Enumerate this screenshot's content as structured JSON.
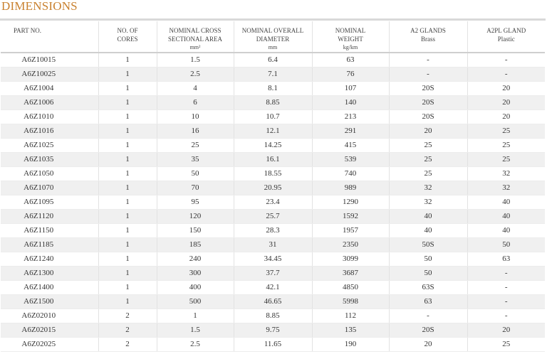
{
  "heading": "DIMENSIONS",
  "columns": [
    {
      "lines": [
        "PART NO."
      ],
      "unit": ""
    },
    {
      "lines": [
        "NO. OF",
        "CORES"
      ],
      "unit": ""
    },
    {
      "lines": [
        "NOMINAL CROSS",
        "SECTIONAL AREA"
      ],
      "unit": "mm²"
    },
    {
      "lines": [
        "NOMINAL OVERALL",
        "DIAMETER"
      ],
      "unit": "mm"
    },
    {
      "lines": [
        "NOMINAL",
        "WEIGHT"
      ],
      "unit": "kg/km"
    },
    {
      "lines": [
        "A2 GLANDS",
        "Brass"
      ],
      "unit": ""
    },
    {
      "lines": [
        "A2PL GLAND",
        "Plastic"
      ],
      "unit": ""
    }
  ],
  "rows": [
    [
      "A6Z10015",
      "1",
      "1.5",
      "6.4",
      "63",
      "-",
      "-"
    ],
    [
      "A6Z10025",
      "1",
      "2.5",
      "7.1",
      "76",
      "-",
      "-"
    ],
    [
      "A6Z1004",
      "1",
      "4",
      "8.1",
      "107",
      "20S",
      "20"
    ],
    [
      "A6Z1006",
      "1",
      "6",
      "8.85",
      "140",
      "20S",
      "20"
    ],
    [
      "A6Z1010",
      "1",
      "10",
      "10.7",
      "213",
      "20S",
      "20"
    ],
    [
      "A6Z1016",
      "1",
      "16",
      "12.1",
      "291",
      "20",
      "25"
    ],
    [
      "A6Z1025",
      "1",
      "25",
      "14.25",
      "415",
      "25",
      "25"
    ],
    [
      "A6Z1035",
      "1",
      "35",
      "16.1",
      "539",
      "25",
      "25"
    ],
    [
      "A6Z1050",
      "1",
      "50",
      "18.55",
      "740",
      "25",
      "32"
    ],
    [
      "A6Z1070",
      "1",
      "70",
      "20.95",
      "989",
      "32",
      "32"
    ],
    [
      "A6Z1095",
      "1",
      "95",
      "23.4",
      "1290",
      "32",
      "40"
    ],
    [
      "A6Z1120",
      "1",
      "120",
      "25.7",
      "1592",
      "40",
      "40"
    ],
    [
      "A6Z1150",
      "1",
      "150",
      "28.3",
      "1957",
      "40",
      "40"
    ],
    [
      "A6Z1185",
      "1",
      "185",
      "31",
      "2350",
      "50S",
      "50"
    ],
    [
      "A6Z1240",
      "1",
      "240",
      "34.45",
      "3099",
      "50",
      "63"
    ],
    [
      "A6Z1300",
      "1",
      "300",
      "37.7",
      "3687",
      "50",
      "-"
    ],
    [
      "A6Z1400",
      "1",
      "400",
      "42.1",
      "4850",
      "63S",
      "-"
    ],
    [
      "A6Z1500",
      "1",
      "500",
      "46.65",
      "5998",
      "63",
      "-"
    ],
    [
      "A6Z02010",
      "2",
      "1",
      "8.85",
      "112",
      "-",
      "-"
    ],
    [
      "A6Z02015",
      "2",
      "1.5",
      "9.75",
      "135",
      "20S",
      "20"
    ],
    [
      "A6Z02025",
      "2",
      "2.5",
      "11.65",
      "190",
      "20",
      "25"
    ]
  ]
}
